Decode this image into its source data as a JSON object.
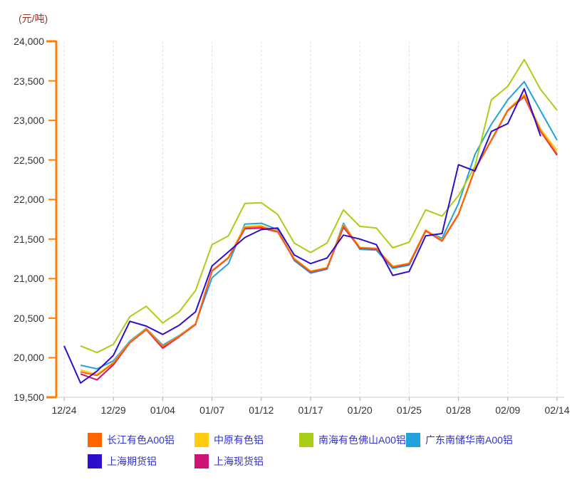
{
  "unit_label": "(元/吨)",
  "colors": {
    "background": "#FFFFFF",
    "y_axis": "#FF7F00",
    "x_axis_line": "#CCCCCC",
    "x_axis_tick": "#AAAAAA",
    "gridline": "#DDDDDD",
    "tick_text": "#333333",
    "unit_text": "#993322",
    "legend_text": "#3232CC"
  },
  "chart_data": {
    "type": "line",
    "title": "",
    "ylabel": "(元/吨)",
    "xlabel": "",
    "ylim": [
      19500,
      24000
    ],
    "y_ticks": [
      24000,
      23500,
      23000,
      22500,
      22000,
      21500,
      21000,
      20500,
      20000,
      19500
    ],
    "x_labels": [
      "12/24",
      "12/29",
      "01/04",
      "01/07",
      "01/12",
      "01/17",
      "01/20",
      "01/25",
      "01/28",
      "02/09",
      "02/14"
    ],
    "points_per_label_interval": 3,
    "grid": "vertical-dashed",
    "legend_position": "bottom",
    "series": [
      {
        "name": "长江有色A00铝",
        "color": "#FF6600",
        "values": [
          null,
          19820,
          19775,
          19930,
          20195,
          20360,
          20140,
          20270,
          20425,
          21100,
          21265,
          21645,
          21655,
          21595,
          21250,
          21090,
          21135,
          21670,
          21390,
          21380,
          21150,
          21190,
          21610,
          21480,
          21815,
          22385,
          22750,
          23130,
          23310,
          22870,
          22580
        ]
      },
      {
        "name": "中原有色铝",
        "color": "#FFCC11",
        "values": [
          null,
          19845,
          19790,
          19940,
          20200,
          20365,
          20145,
          20275,
          20430,
          21100,
          21270,
          21660,
          21670,
          21600,
          21255,
          21095,
          21140,
          21680,
          21395,
          21385,
          21155,
          21195,
          21615,
          21485,
          21820,
          22390,
          22755,
          23135,
          23330,
          22890,
          22620
        ]
      },
      {
        "name": "南海有色佛山A00铝",
        "color": "#A9CE18",
        "values": [
          null,
          20150,
          20065,
          20170,
          20520,
          20650,
          20440,
          20580,
          20850,
          21430,
          21540,
          21950,
          21960,
          21810,
          21450,
          21330,
          21450,
          21870,
          21660,
          21640,
          21390,
          21460,
          21870,
          21790,
          22050,
          22420,
          23260,
          23430,
          23770,
          23390,
          23130
        ]
      },
      {
        "name": "广东南储华南A00铝",
        "color": "#22A2DC",
        "values": [
          null,
          19905,
          19860,
          19960,
          20210,
          20370,
          20160,
          20280,
          20430,
          21010,
          21190,
          21690,
          21700,
          21620,
          21230,
          21070,
          21120,
          21700,
          21370,
          21360,
          21130,
          21170,
          21600,
          21510,
          21950,
          22570,
          22950,
          23260,
          23490,
          23120,
          22750
        ]
      },
      {
        "name": "上海期货铝",
        "color": "#2E0ECC",
        "values": [
          20150,
          19680,
          19830,
          20030,
          20460,
          20400,
          20295,
          20410,
          20580,
          21160,
          21340,
          21520,
          21620,
          21640,
          21300,
          21190,
          21260,
          21550,
          21500,
          21430,
          21040,
          21090,
          21540,
          21570,
          22440,
          22360,
          22860,
          22960,
          23400,
          22800,
          null
        ]
      },
      {
        "name": "上海现货铝",
        "color": "#CC1477",
        "values": [
          null,
          19795,
          19720,
          19910,
          20190,
          20355,
          20120,
          20265,
          20420,
          21095,
          21260,
          21630,
          21640,
          21590,
          21245,
          21085,
          21130,
          21650,
          21385,
          21375,
          21145,
          21185,
          21605,
          21475,
          21810,
          22380,
          22745,
          23125,
          23300,
          22860,
          22560
        ]
      }
    ],
    "draw_order": [
      3,
      1,
      5,
      0,
      2,
      4
    ]
  },
  "legend": {
    "rows": [
      [
        0,
        1,
        2,
        3
      ],
      [
        4,
        5
      ]
    ]
  }
}
